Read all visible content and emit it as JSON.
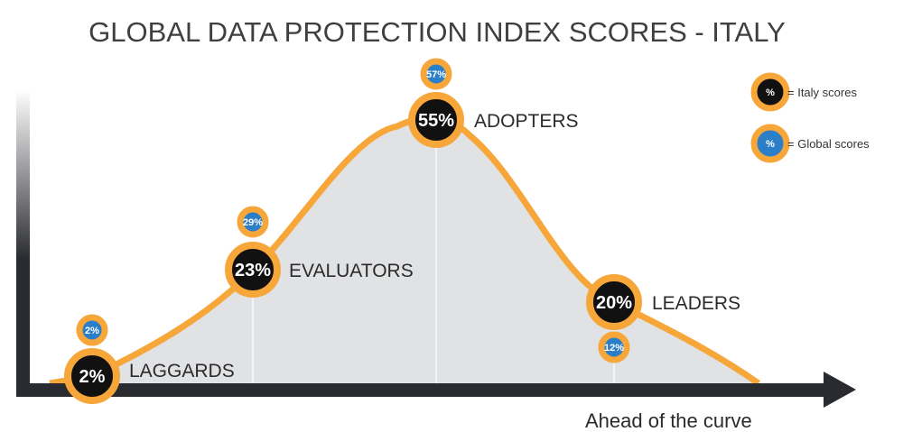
{
  "chart_data": {
    "type": "line",
    "title": "GLOBAL DATA PROTECTION INDEX SCORES - ITALY",
    "xlabel": "Ahead of the curve",
    "categories": [
      "LAGGARDS",
      "EVALUATORS",
      "ADOPTERS",
      "LEADERS"
    ],
    "series": [
      {
        "name": "= Italy scores",
        "values": [
          2,
          23,
          55,
          20
        ],
        "labels": [
          "2%",
          "23%",
          "55%",
          "20%"
        ],
        "color": "#111111"
      },
      {
        "name": "= Global scores",
        "values": [
          2,
          29,
          57,
          12
        ],
        "labels": [
          "2%",
          "29%",
          "57%",
          "12%"
        ],
        "color": "#2a7fc8"
      }
    ],
    "legend": {
      "position": "top-right",
      "symbol": "%",
      "items": [
        "= Italy scores",
        "= Global scores"
      ]
    },
    "colors": {
      "curve": "#f7a63a",
      "fill": "#e1e2e4",
      "axis": "#2a2b30"
    }
  }
}
